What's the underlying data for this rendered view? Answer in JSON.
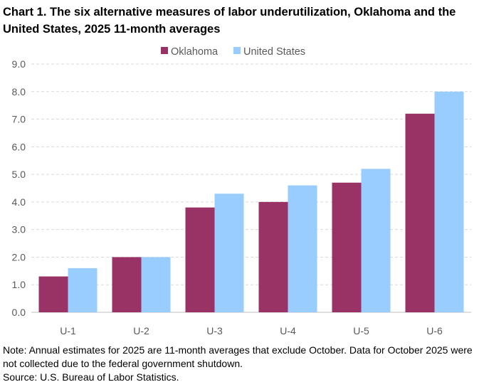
{
  "chart_data": {
    "type": "bar",
    "title": "Chart 1. The six alternative measures of labor underutilization, Oklahoma and the United States, 2025 11-month averages",
    "categories": [
      "U-1",
      "U-2",
      "U-3",
      "U-4",
      "U-5",
      "U-6"
    ],
    "series": [
      {
        "name": "Oklahoma",
        "color": "#993366",
        "values": [
          1.3,
          2.0,
          3.8,
          4.0,
          4.7,
          7.2
        ]
      },
      {
        "name": "United States",
        "color": "#99CCFF",
        "values": [
          1.6,
          2.0,
          4.3,
          4.6,
          5.2,
          8.0
        ]
      }
    ],
    "ylim": [
      0,
      9
    ],
    "yticks": [
      "0.0",
      "1.0",
      "2.0",
      "3.0",
      "4.0",
      "5.0",
      "6.0",
      "7.0",
      "8.0",
      "9.0"
    ],
    "grid": "horizontal dashed",
    "legend": "top-center",
    "xlabel": "",
    "ylabel": ""
  },
  "notes": {
    "note": "Note: Annual estimates for 2025 are 11-month averages that exclude October. Data for October 2025 were not collected due to the federal government shutdown.",
    "source": "Source: U.S. Bureau of Labor Statistics."
  }
}
